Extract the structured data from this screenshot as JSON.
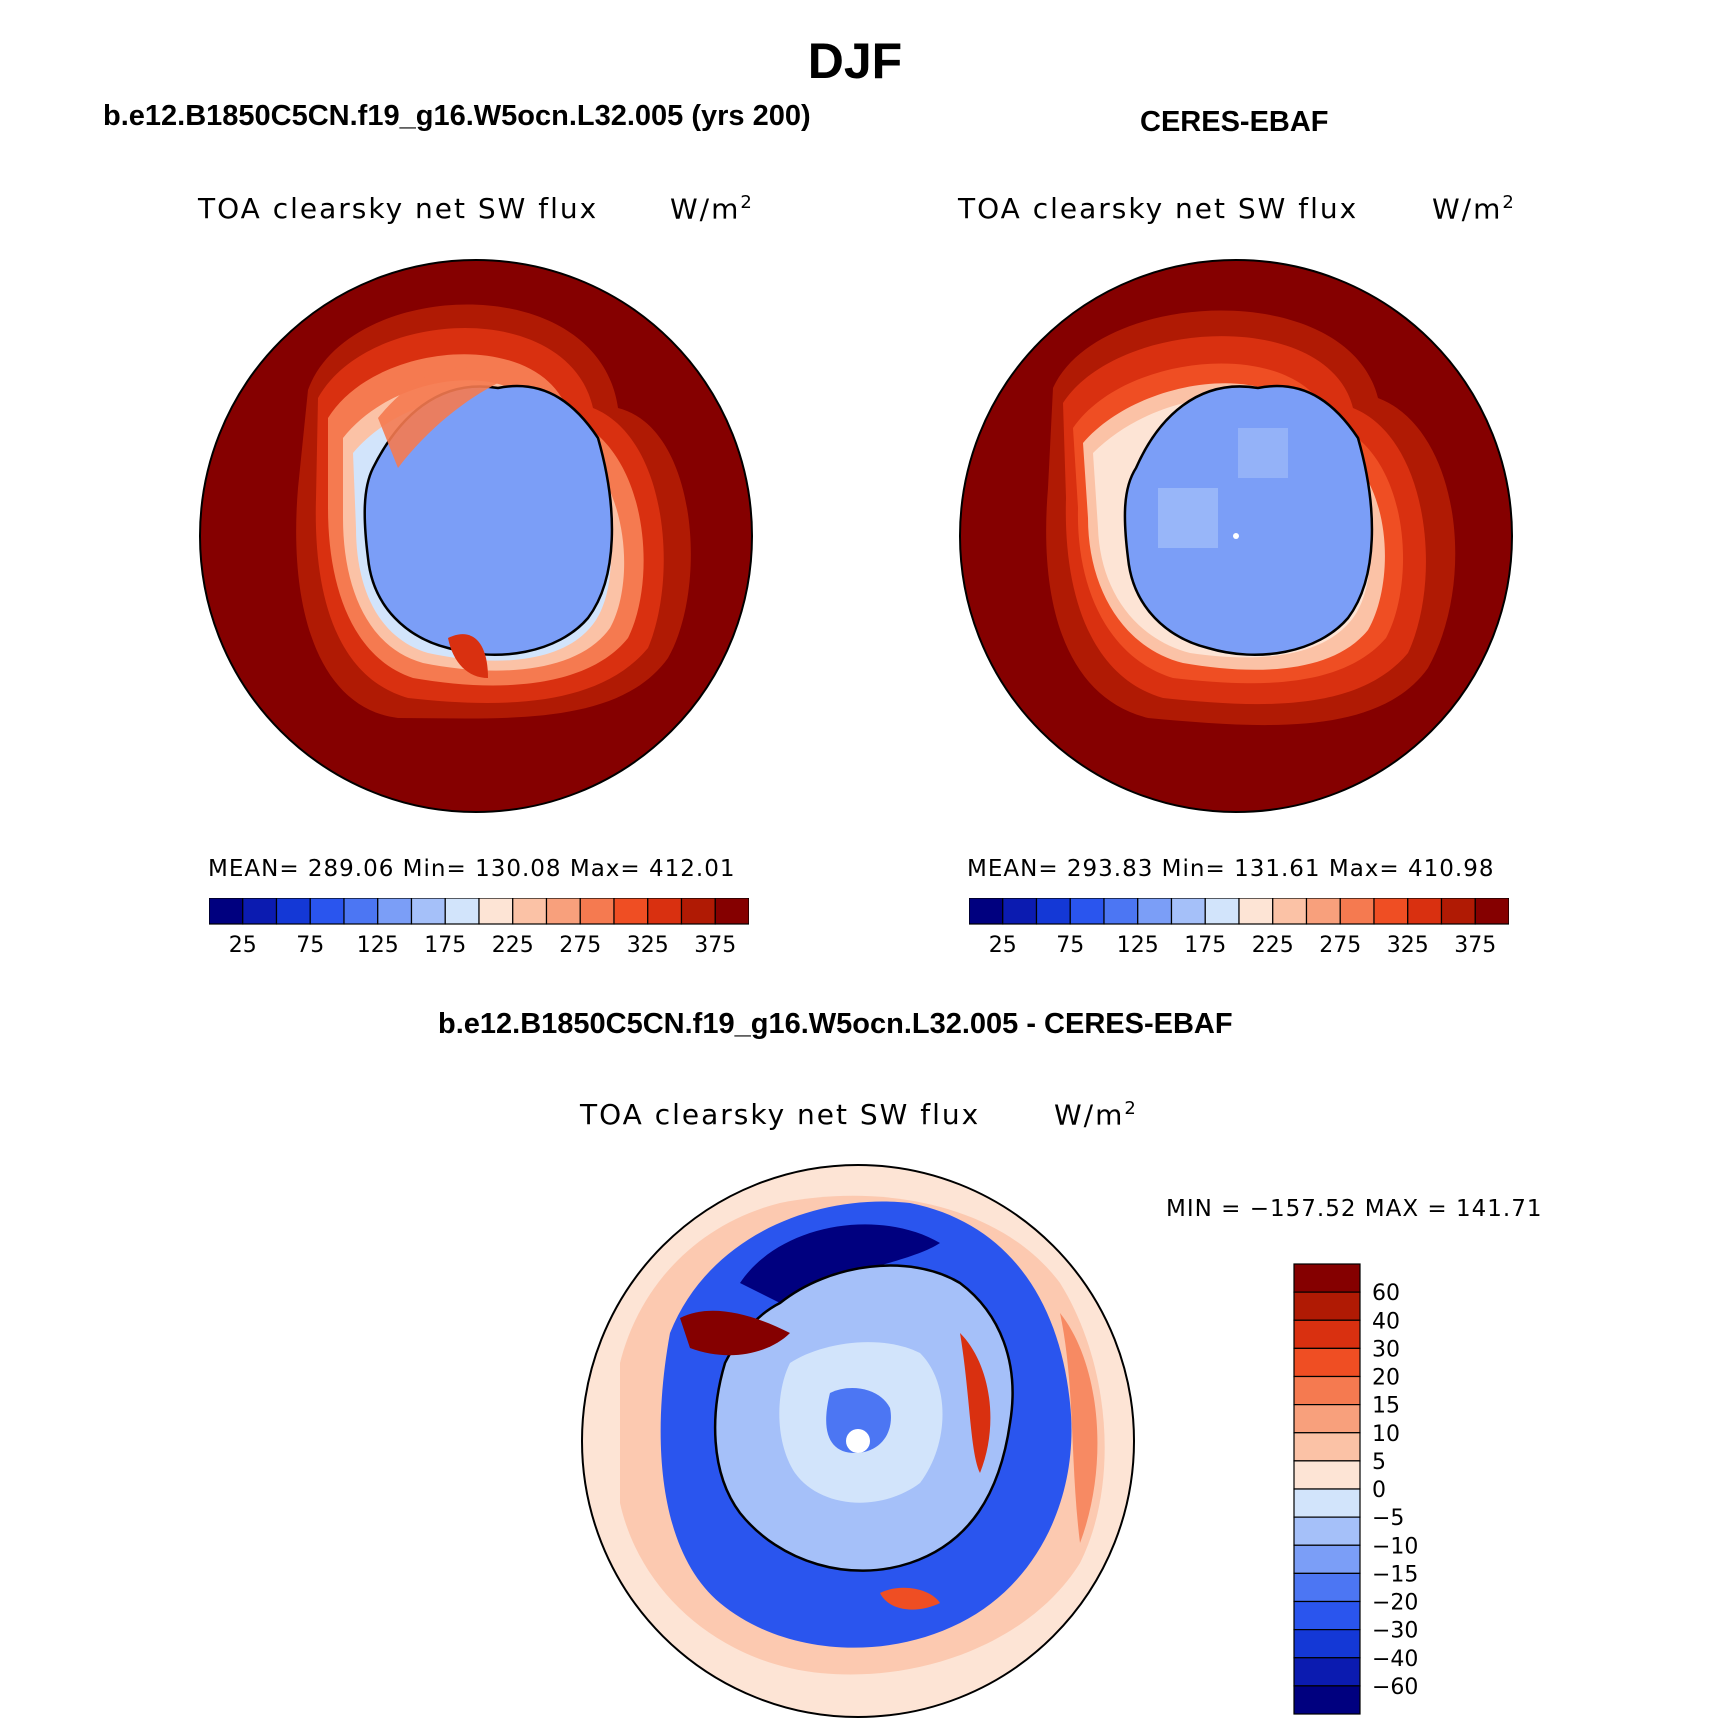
{
  "title": "DJF",
  "panels": {
    "model": {
      "case_title": "b.e12.B1850C5CN.f19_g16.W5ocn.L32.005 (yrs 200)",
      "variable": "TOA clearsky net SW flux",
      "units_base": "W/m",
      "units_exp": "2",
      "stats": "MEAN= 289.06   Min= 130.08   Max= 412.01"
    },
    "obs": {
      "case_title": "CERES-EBAF",
      "variable": "TOA clearsky net SW flux",
      "units_base": "W/m",
      "units_exp": "2",
      "stats": "MEAN= 293.83   Min= 131.61   Max= 410.98"
    },
    "diff": {
      "case_title": "b.e12.B1850C5CN.f19_g16.W5ocn.L32.005 - CERES-EBAF",
      "variable": "TOA clearsky net SW flux",
      "units_base": "W/m",
      "units_exp": "2",
      "minmax": "MIN = −157.52  MAX = 141.71"
    }
  },
  "abs_colorbar": {
    "colors": [
      "#00007f",
      "#0b1bb0",
      "#1438d6",
      "#2a55ee",
      "#4c76f3",
      "#7b9ef7",
      "#a5c0f9",
      "#d2e4fb",
      "#fde4d5",
      "#fbc2a6",
      "#f8a07c",
      "#f57a50",
      "#ef4e23",
      "#d93010",
      "#b01a04",
      "#850000"
    ],
    "labels": [
      "25",
      "75",
      "125",
      "175",
      "225",
      "275",
      "325",
      "375"
    ]
  },
  "diff_colorbar": {
    "colors_top_to_bottom": [
      "#850000",
      "#b01a04",
      "#d93010",
      "#ef4e23",
      "#f57a50",
      "#f8a07c",
      "#fbc2a6",
      "#fde4d5",
      "#d2e4fb",
      "#a5c0f9",
      "#7b9ef7",
      "#4c76f3",
      "#2a55ee",
      "#1438d6",
      "#0b1bb0",
      "#00007f"
    ],
    "labels_top_to_bottom": [
      "60",
      "40",
      "30",
      "20",
      "15",
      "10",
      "5",
      "0",
      "−5",
      "−10",
      "−15",
      "−20",
      "−30",
      "−40",
      "−60"
    ]
  }
}
